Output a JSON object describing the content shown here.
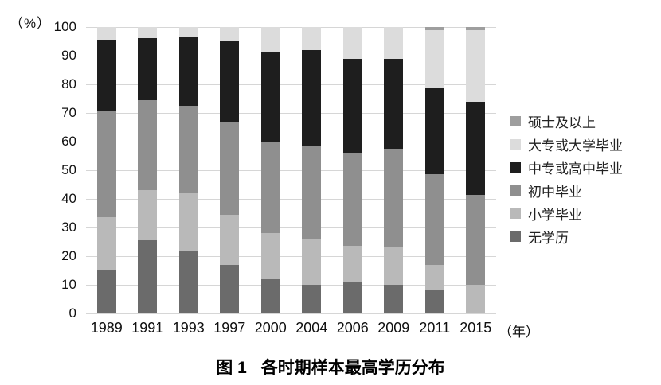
{
  "chart_data": {
    "type": "bar",
    "subtype": "stacked-vertical",
    "y_unit_label": "（%）",
    "x_unit_label": "（年）",
    "ylim": [
      0,
      100
    ],
    "ytick_step": 10,
    "grid": true,
    "legend_position": "right",
    "categories": [
      "1989",
      "1991",
      "1993",
      "1997",
      "2000",
      "2004",
      "2006",
      "2009",
      "2011",
      "2015"
    ],
    "series": [
      {
        "name": "无学历",
        "color": "#6b6b6b",
        "values": [
          15,
          25.5,
          22,
          17,
          12,
          10,
          11,
          10,
          8,
          0
        ]
      },
      {
        "name": "小学毕业",
        "color": "#b9b9b9",
        "values": [
          18.5,
          17.5,
          20,
          17.5,
          16,
          16,
          12.5,
          13,
          9,
          10
        ]
      },
      {
        "name": "初中毕业",
        "color": "#8f8f8f",
        "values": [
          37,
          31.5,
          30.5,
          32.5,
          32,
          32.5,
          32.5,
          34.5,
          31.5,
          31.5
        ]
      },
      {
        "name": "中专或高中毕业",
        "color": "#1e1e1e",
        "values": [
          25,
          21.5,
          24,
          28,
          31,
          33.5,
          33,
          31.5,
          30,
          32.5
        ]
      },
      {
        "name": "大专或大学毕业",
        "color": "#dcdcdc",
        "values": [
          4.5,
          4,
          3.5,
          5,
          9,
          8,
          11,
          11,
          20.5,
          25
        ]
      },
      {
        "name": "硕士及以上",
        "color": "#9e9e9e",
        "values": [
          0,
          0,
          0,
          0,
          0,
          0,
          0,
          0,
          1,
          1
        ]
      }
    ],
    "legend_order_top_to_bottom": [
      "硕士及以上",
      "大专或大学毕业",
      "中专或高中毕业",
      "初中毕业",
      "小学毕业",
      "无学历"
    ]
  },
  "caption": {
    "label": "图 1",
    "title": "各时期样本最高学历分布"
  }
}
